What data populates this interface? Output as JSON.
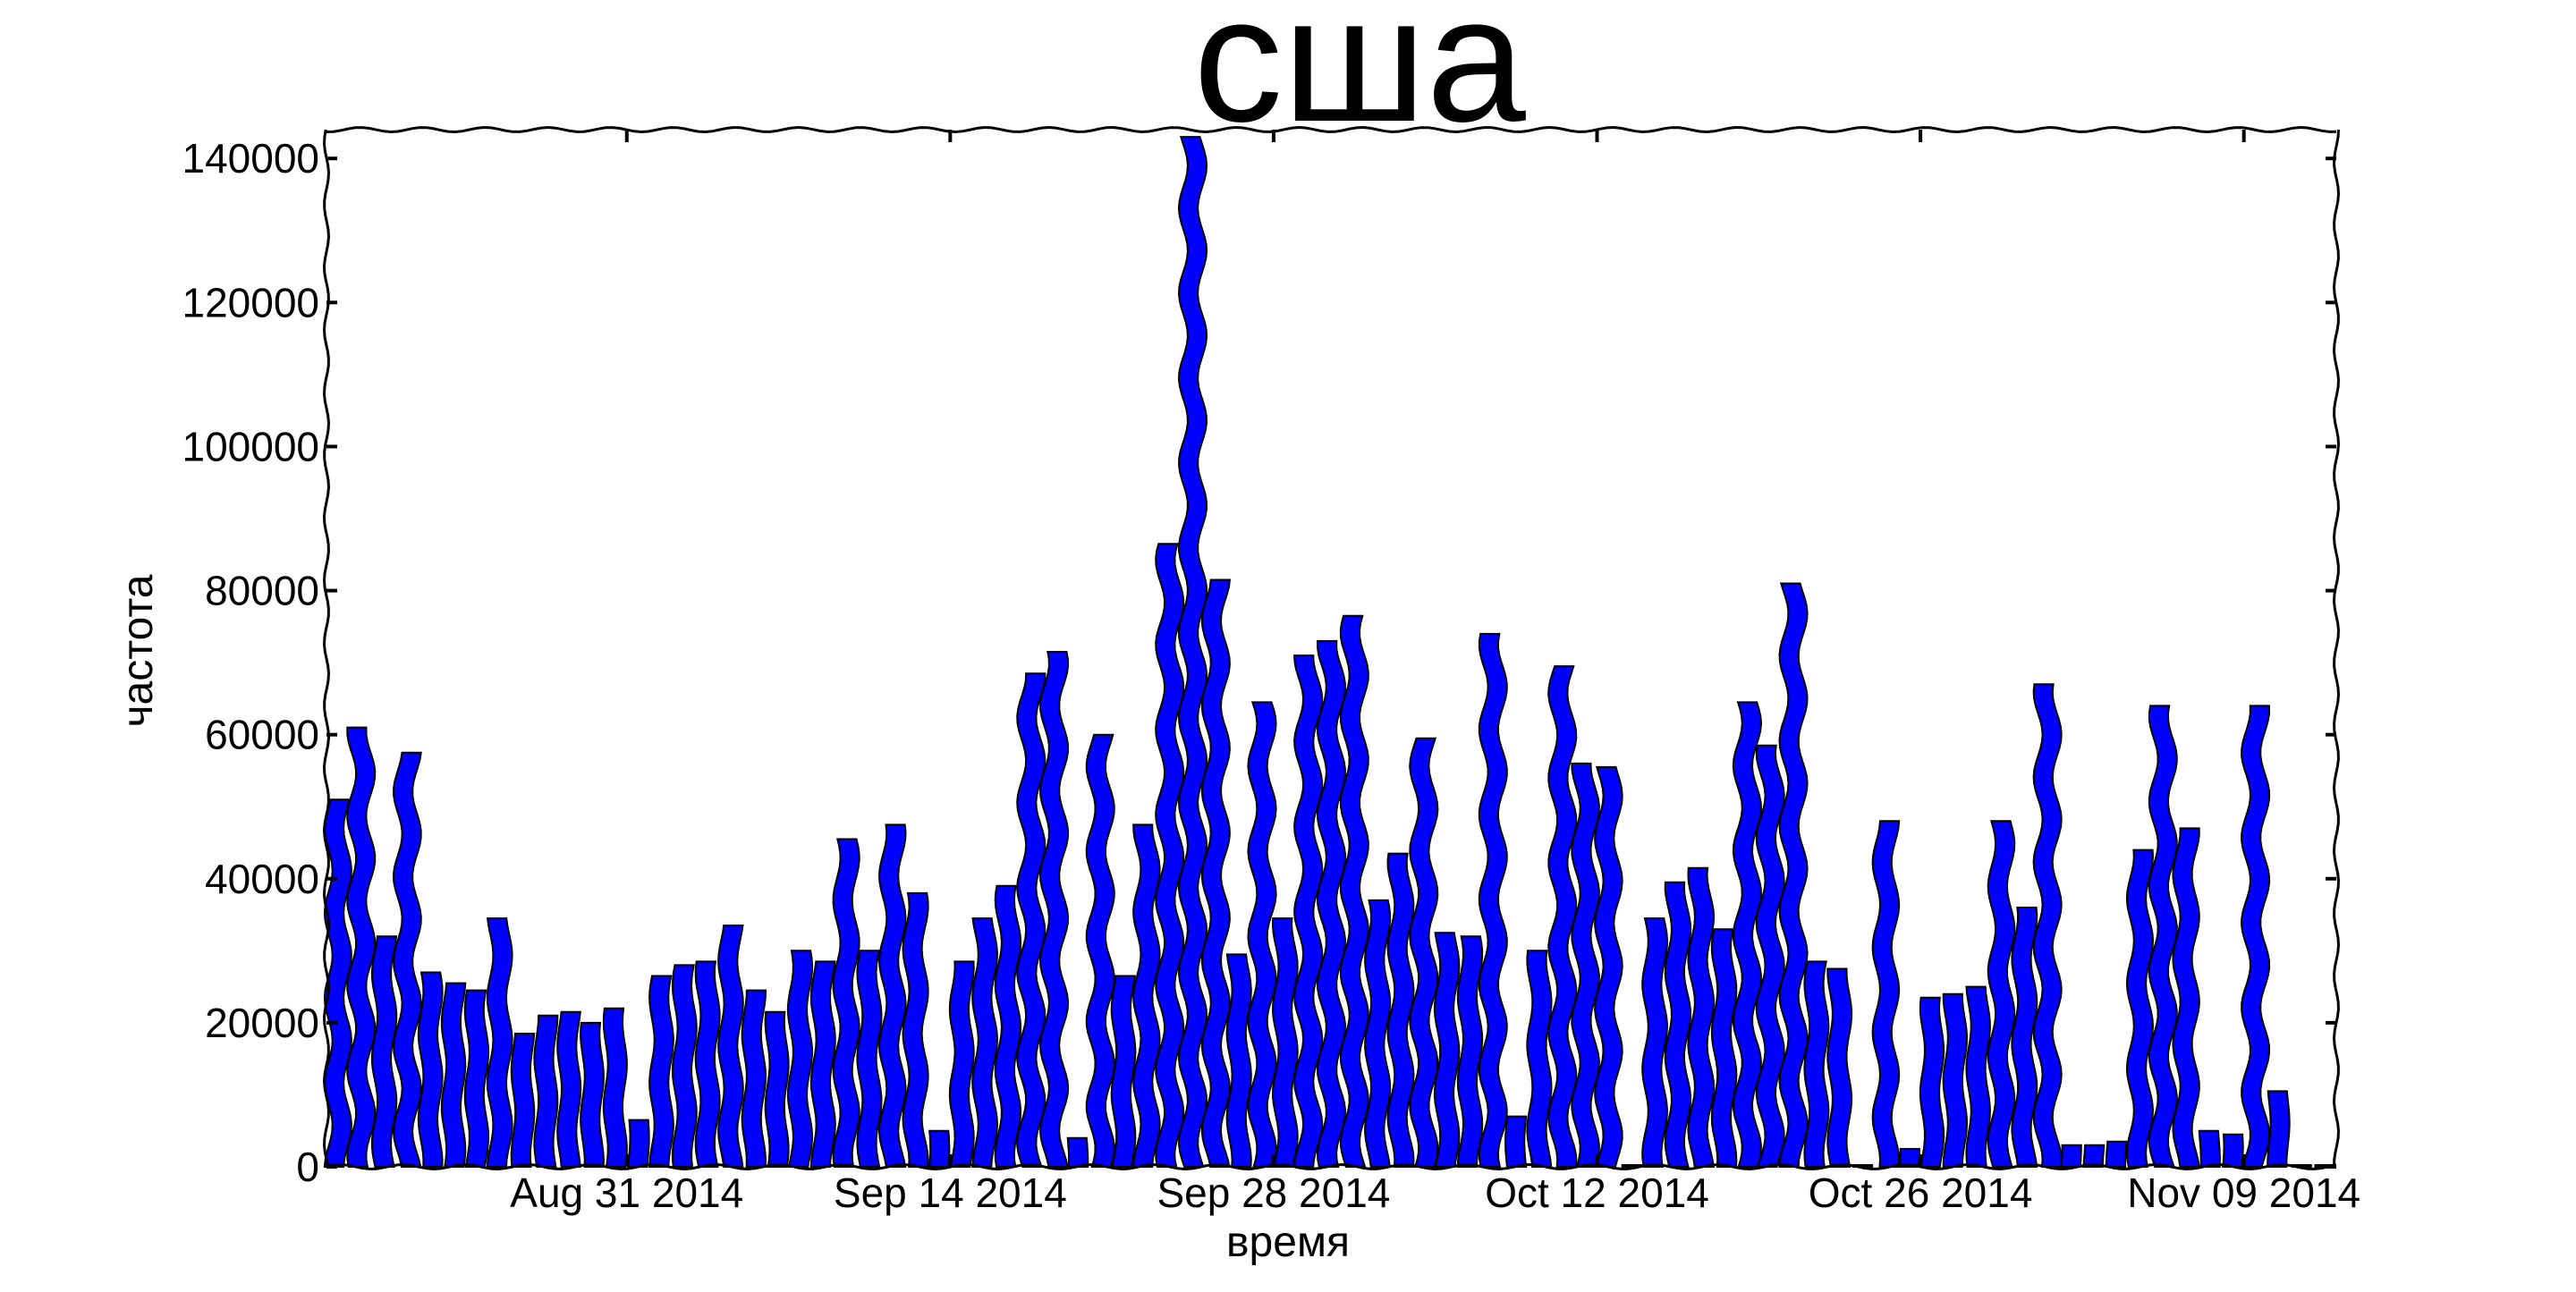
{
  "chart_data": {
    "type": "bar",
    "title": "сша",
    "xlabel": "время",
    "ylabel": "частота",
    "ylim": [
      0,
      144000
    ],
    "yticks": [
      0,
      20000,
      40000,
      60000,
      80000,
      100000,
      120000,
      140000
    ],
    "xtick_labels": [
      "Aug 31 2014",
      "Sep 14 2014",
      "Sep 28 2014",
      "Oct 12 2014",
      "Oct 26 2014",
      "Nov 09 2014"
    ],
    "dates": [
      "2014-08-18",
      "2014-08-19",
      "2014-08-20",
      "2014-08-21",
      "2014-08-22",
      "2014-08-23",
      "2014-08-24",
      "2014-08-25",
      "2014-08-26",
      "2014-08-27",
      "2014-08-28",
      "2014-08-29",
      "2014-08-30",
      "2014-08-31",
      "2014-09-01",
      "2014-09-02",
      "2014-09-03",
      "2014-09-04",
      "2014-09-05",
      "2014-09-06",
      "2014-09-07",
      "2014-09-08",
      "2014-09-09",
      "2014-09-10",
      "2014-09-11",
      "2014-09-12",
      "2014-09-13",
      "2014-09-14",
      "2014-09-15",
      "2014-09-16",
      "2014-09-17",
      "2014-09-18",
      "2014-09-19",
      "2014-09-20",
      "2014-09-21",
      "2014-09-22",
      "2014-09-23",
      "2014-09-24",
      "2014-09-25",
      "2014-09-26",
      "2014-09-27",
      "2014-09-28",
      "2014-09-29",
      "2014-09-30",
      "2014-10-01",
      "2014-10-02",
      "2014-10-03",
      "2014-10-04",
      "2014-10-05",
      "2014-10-06",
      "2014-10-07",
      "2014-10-08",
      "2014-10-09",
      "2014-10-10",
      "2014-10-11",
      "2014-10-12",
      "2014-10-13",
      "2014-10-14",
      "2014-10-15",
      "2014-10-16",
      "2014-10-17",
      "2014-10-18",
      "2014-10-19",
      "2014-10-20",
      "2014-10-21",
      "2014-10-22",
      "2014-10-23",
      "2014-10-24",
      "2014-10-25",
      "2014-10-26",
      "2014-10-27",
      "2014-10-28",
      "2014-10-29",
      "2014-10-30",
      "2014-10-31",
      "2014-11-01",
      "2014-11-02",
      "2014-11-03",
      "2014-11-04",
      "2014-11-05",
      "2014-11-06",
      "2014-11-07",
      "2014-11-08",
      "2014-11-09",
      "2014-11-10",
      "2014-11-11",
      "2014-11-12"
    ],
    "values": [
      51000,
      61000,
      32000,
      57500,
      27000,
      25500,
      24500,
      34500,
      18500,
      21000,
      21500,
      20000,
      22000,
      6500,
      26500,
      28000,
      28500,
      33500,
      24500,
      21500,
      30000,
      28500,
      45500,
      30000,
      47500,
      38000,
      5000,
      28500,
      34500,
      39000,
      68500,
      71500,
      4000,
      60000,
      26500,
      47500,
      86500,
      143000,
      81500,
      29500,
      64500,
      34500,
      71000,
      73000,
      76500,
      37000,
      43500,
      59500,
      32500,
      32000,
      74000,
      7000,
      30000,
      69500,
      56000,
      55500,
      0,
      34500,
      39500,
      41500,
      33000,
      64500,
      58500,
      81000,
      28500,
      27500,
      300,
      48000,
      2500,
      23500,
      24000,
      25000,
      48000,
      36000,
      67000,
      3000,
      3000,
      3500,
      44000,
      64000,
      47000,
      5000,
      4500,
      64000,
      10500,
      0,
      0
    ],
    "bar_color": "#0000ff",
    "edge_color": "#000000",
    "grid": false,
    "style": "xkcd"
  }
}
